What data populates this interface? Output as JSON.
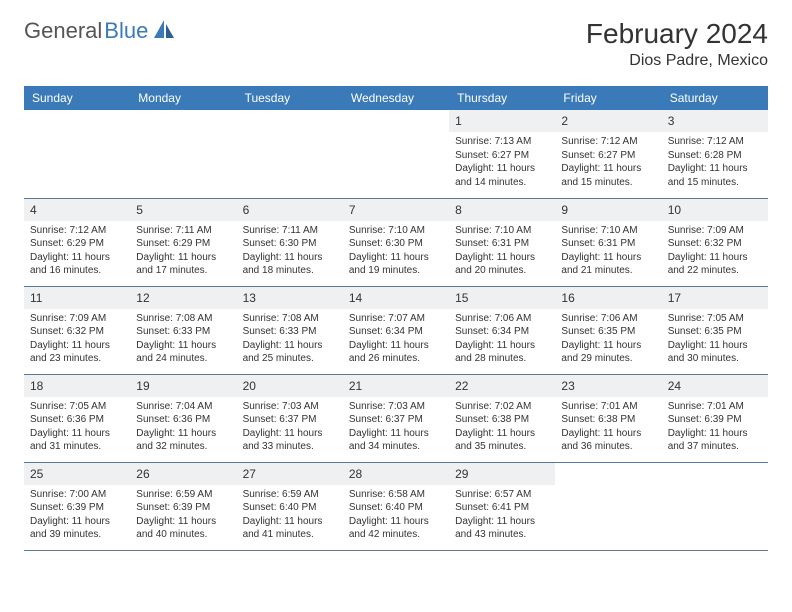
{
  "brand": {
    "part1": "General",
    "part2": "Blue"
  },
  "title": "February 2024",
  "location": "Dios Padre, Mexico",
  "colors": {
    "header_bg": "#3a7ab8",
    "header_text": "#ffffff",
    "day_num_bg": "#eef0f2",
    "cell_border": "#5b7a9a",
    "text": "#333333",
    "brand_gray": "#555555",
    "brand_blue": "#3a7ab8",
    "page_bg": "#ffffff"
  },
  "typography": {
    "title_fontsize": 28,
    "location_fontsize": 16,
    "dayheader_fontsize": 12,
    "daynum_fontsize": 12,
    "body_fontsize": 10
  },
  "day_headers": [
    "Sunday",
    "Monday",
    "Tuesday",
    "Wednesday",
    "Thursday",
    "Friday",
    "Saturday"
  ],
  "weeks": [
    [
      null,
      null,
      null,
      null,
      {
        "n": "1",
        "sunrise": "Sunrise: 7:13 AM",
        "sunset": "Sunset: 6:27 PM",
        "dl1": "Daylight: 11 hours",
        "dl2": "and 14 minutes."
      },
      {
        "n": "2",
        "sunrise": "Sunrise: 7:12 AM",
        "sunset": "Sunset: 6:27 PM",
        "dl1": "Daylight: 11 hours",
        "dl2": "and 15 minutes."
      },
      {
        "n": "3",
        "sunrise": "Sunrise: 7:12 AM",
        "sunset": "Sunset: 6:28 PM",
        "dl1": "Daylight: 11 hours",
        "dl2": "and 15 minutes."
      }
    ],
    [
      {
        "n": "4",
        "sunrise": "Sunrise: 7:12 AM",
        "sunset": "Sunset: 6:29 PM",
        "dl1": "Daylight: 11 hours",
        "dl2": "and 16 minutes."
      },
      {
        "n": "5",
        "sunrise": "Sunrise: 7:11 AM",
        "sunset": "Sunset: 6:29 PM",
        "dl1": "Daylight: 11 hours",
        "dl2": "and 17 minutes."
      },
      {
        "n": "6",
        "sunrise": "Sunrise: 7:11 AM",
        "sunset": "Sunset: 6:30 PM",
        "dl1": "Daylight: 11 hours",
        "dl2": "and 18 minutes."
      },
      {
        "n": "7",
        "sunrise": "Sunrise: 7:10 AM",
        "sunset": "Sunset: 6:30 PM",
        "dl1": "Daylight: 11 hours",
        "dl2": "and 19 minutes."
      },
      {
        "n": "8",
        "sunrise": "Sunrise: 7:10 AM",
        "sunset": "Sunset: 6:31 PM",
        "dl1": "Daylight: 11 hours",
        "dl2": "and 20 minutes."
      },
      {
        "n": "9",
        "sunrise": "Sunrise: 7:10 AM",
        "sunset": "Sunset: 6:31 PM",
        "dl1": "Daylight: 11 hours",
        "dl2": "and 21 minutes."
      },
      {
        "n": "10",
        "sunrise": "Sunrise: 7:09 AM",
        "sunset": "Sunset: 6:32 PM",
        "dl1": "Daylight: 11 hours",
        "dl2": "and 22 minutes."
      }
    ],
    [
      {
        "n": "11",
        "sunrise": "Sunrise: 7:09 AM",
        "sunset": "Sunset: 6:32 PM",
        "dl1": "Daylight: 11 hours",
        "dl2": "and 23 minutes."
      },
      {
        "n": "12",
        "sunrise": "Sunrise: 7:08 AM",
        "sunset": "Sunset: 6:33 PM",
        "dl1": "Daylight: 11 hours",
        "dl2": "and 24 minutes."
      },
      {
        "n": "13",
        "sunrise": "Sunrise: 7:08 AM",
        "sunset": "Sunset: 6:33 PM",
        "dl1": "Daylight: 11 hours",
        "dl2": "and 25 minutes."
      },
      {
        "n": "14",
        "sunrise": "Sunrise: 7:07 AM",
        "sunset": "Sunset: 6:34 PM",
        "dl1": "Daylight: 11 hours",
        "dl2": "and 26 minutes."
      },
      {
        "n": "15",
        "sunrise": "Sunrise: 7:06 AM",
        "sunset": "Sunset: 6:34 PM",
        "dl1": "Daylight: 11 hours",
        "dl2": "and 28 minutes."
      },
      {
        "n": "16",
        "sunrise": "Sunrise: 7:06 AM",
        "sunset": "Sunset: 6:35 PM",
        "dl1": "Daylight: 11 hours",
        "dl2": "and 29 minutes."
      },
      {
        "n": "17",
        "sunrise": "Sunrise: 7:05 AM",
        "sunset": "Sunset: 6:35 PM",
        "dl1": "Daylight: 11 hours",
        "dl2": "and 30 minutes."
      }
    ],
    [
      {
        "n": "18",
        "sunrise": "Sunrise: 7:05 AM",
        "sunset": "Sunset: 6:36 PM",
        "dl1": "Daylight: 11 hours",
        "dl2": "and 31 minutes."
      },
      {
        "n": "19",
        "sunrise": "Sunrise: 7:04 AM",
        "sunset": "Sunset: 6:36 PM",
        "dl1": "Daylight: 11 hours",
        "dl2": "and 32 minutes."
      },
      {
        "n": "20",
        "sunrise": "Sunrise: 7:03 AM",
        "sunset": "Sunset: 6:37 PM",
        "dl1": "Daylight: 11 hours",
        "dl2": "and 33 minutes."
      },
      {
        "n": "21",
        "sunrise": "Sunrise: 7:03 AM",
        "sunset": "Sunset: 6:37 PM",
        "dl1": "Daylight: 11 hours",
        "dl2": "and 34 minutes."
      },
      {
        "n": "22",
        "sunrise": "Sunrise: 7:02 AM",
        "sunset": "Sunset: 6:38 PM",
        "dl1": "Daylight: 11 hours",
        "dl2": "and 35 minutes."
      },
      {
        "n": "23",
        "sunrise": "Sunrise: 7:01 AM",
        "sunset": "Sunset: 6:38 PM",
        "dl1": "Daylight: 11 hours",
        "dl2": "and 36 minutes."
      },
      {
        "n": "24",
        "sunrise": "Sunrise: 7:01 AM",
        "sunset": "Sunset: 6:39 PM",
        "dl1": "Daylight: 11 hours",
        "dl2": "and 37 minutes."
      }
    ],
    [
      {
        "n": "25",
        "sunrise": "Sunrise: 7:00 AM",
        "sunset": "Sunset: 6:39 PM",
        "dl1": "Daylight: 11 hours",
        "dl2": "and 39 minutes."
      },
      {
        "n": "26",
        "sunrise": "Sunrise: 6:59 AM",
        "sunset": "Sunset: 6:39 PM",
        "dl1": "Daylight: 11 hours",
        "dl2": "and 40 minutes."
      },
      {
        "n": "27",
        "sunrise": "Sunrise: 6:59 AM",
        "sunset": "Sunset: 6:40 PM",
        "dl1": "Daylight: 11 hours",
        "dl2": "and 41 minutes."
      },
      {
        "n": "28",
        "sunrise": "Sunrise: 6:58 AM",
        "sunset": "Sunset: 6:40 PM",
        "dl1": "Daylight: 11 hours",
        "dl2": "and 42 minutes."
      },
      {
        "n": "29",
        "sunrise": "Sunrise: 6:57 AM",
        "sunset": "Sunset: 6:41 PM",
        "dl1": "Daylight: 11 hours",
        "dl2": "and 43 minutes."
      },
      null,
      null
    ]
  ]
}
